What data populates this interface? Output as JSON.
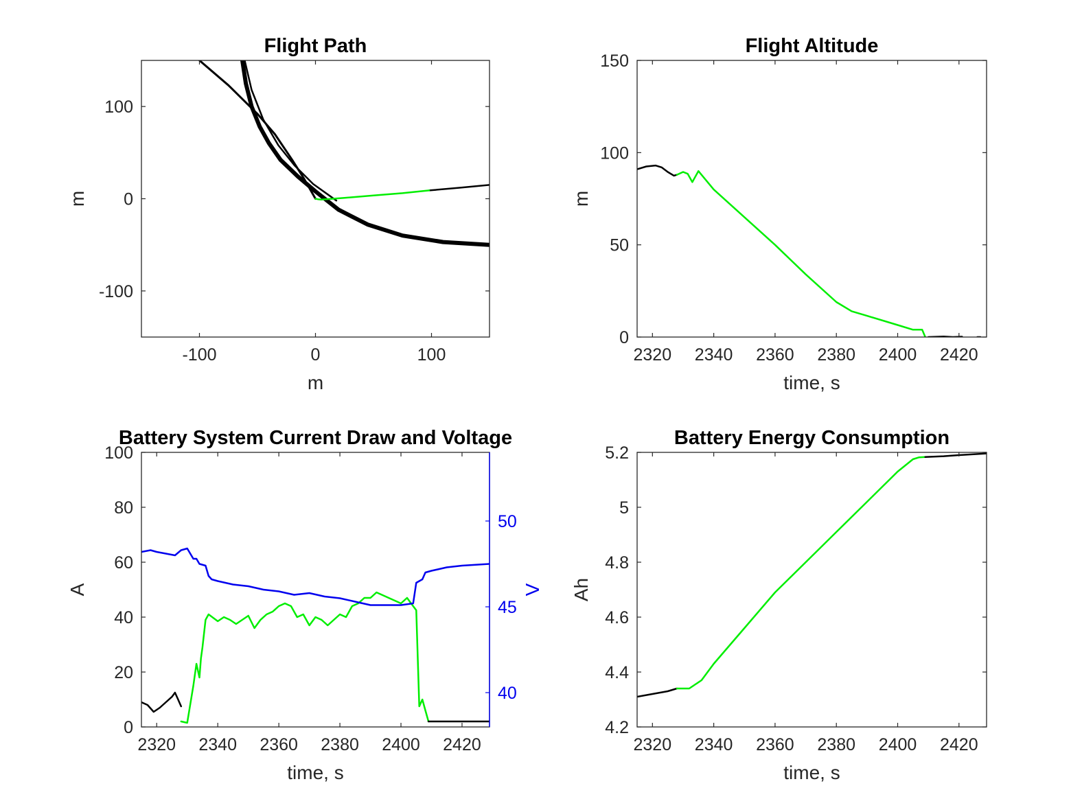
{
  "chart_data": [
    {
      "type": "line",
      "title": "Flight Path",
      "xlabel": "m",
      "ylabel": "m",
      "xlim": [
        -150,
        150
      ],
      "ylim": [
        -150,
        150
      ],
      "xticks": [
        -100,
        0,
        100
      ],
      "yticks": [
        -100,
        0,
        100
      ],
      "series": [
        {
          "color": "#000000",
          "width": 3,
          "x": [
            -100,
            -75,
            -50,
            -35,
            -20,
            -10,
            0
          ],
          "y": [
            150,
            123,
            92,
            70,
            42,
            22,
            0
          ]
        },
        {
          "color": "#000000",
          "width": 6,
          "x": [
            -63,
            -60,
            -55,
            -48,
            -40,
            -30,
            -15,
            0,
            20,
            45,
            75,
            110,
            150
          ],
          "y": [
            150,
            125,
            100,
            78,
            60,
            42,
            24,
            8,
            -12,
            -28,
            -40,
            -47,
            -50
          ]
        },
        {
          "color": "#000000",
          "width": 2.5,
          "x": [
            -61,
            -55,
            -45,
            -32,
            -18,
            -2,
            18
          ],
          "y": [
            150,
            118,
            86,
            58,
            36,
            16,
            -2
          ]
        },
        {
          "color": "#000000",
          "width": 2.5,
          "x": [
            98,
            125,
            150
          ],
          "y": [
            9,
            12,
            15
          ]
        },
        {
          "color": "#00ee00",
          "width": 2.5,
          "x": [
            0,
            2,
            5,
            15,
            25,
            50,
            75,
            98
          ],
          "y": [
            0,
            -0.5,
            -1,
            0,
            1,
            3.5,
            6,
            9
          ]
        }
      ]
    },
    {
      "type": "line",
      "title": "Flight Altitude",
      "xlabel": "time, s",
      "ylabel": "m",
      "xlim": [
        2315,
        2429
      ],
      "ylim": [
        0,
        150
      ],
      "xticks": [
        2320,
        2340,
        2360,
        2380,
        2400,
        2420
      ],
      "yticks": [
        0,
        50,
        100,
        150
      ],
      "series": [
        {
          "color": "#000000",
          "width": 2.5,
          "x": [
            2315,
            2318,
            2321,
            2323,
            2325,
            2327,
            2328
          ],
          "y": [
            91,
            92.5,
            93,
            92,
            89.5,
            87.5,
            88
          ]
        },
        {
          "color": "#00ee00",
          "width": 2.5,
          "x": [
            2328,
            2330,
            2331.5,
            2333,
            2334,
            2335,
            2340,
            2350,
            2360,
            2370,
            2380,
            2385,
            2390,
            2400,
            2405,
            2407,
            2408,
            2409
          ],
          "y": [
            88,
            89.5,
            88.5,
            84,
            87,
            90,
            80,
            65,
            50,
            34,
            19,
            14,
            11.5,
            6.5,
            4,
            4,
            4,
            0
          ]
        },
        {
          "color": "#000000",
          "width": 2.5,
          "x": [
            2410,
            2415,
            2418,
            2421
          ],
          "y": [
            0,
            0.3,
            0,
            0.2
          ]
        },
        {
          "color": "#000000",
          "width": 2.5,
          "x": [
            2426,
            2427
          ],
          "y": [
            0,
            0
          ]
        }
      ]
    },
    {
      "type": "line",
      "title": "Battery System Current Draw and Voltage",
      "xlabel": "time, s",
      "ylabel": "A",
      "ylabel_right": "V",
      "xlim": [
        2315,
        2429
      ],
      "ylim": [
        0,
        100
      ],
      "ylim_right": [
        38,
        54
      ],
      "xticks": [
        2320,
        2340,
        2360,
        2380,
        2400,
        2420
      ],
      "yticks": [
        0,
        20,
        40,
        60,
        80,
        100
      ],
      "yticks_right": [
        40,
        45,
        50
      ],
      "right_color": "#0000ee",
      "series": [
        {
          "axis": "left",
          "color": "#000000",
          "width": 2.5,
          "x": [
            2315,
            2317,
            2319,
            2321,
            2323,
            2325,
            2326,
            2327,
            2328
          ],
          "y": [
            9,
            8,
            5.5,
            7,
            9,
            11,
            12.5,
            10,
            7.5
          ]
        },
        {
          "axis": "left",
          "color": "#00ee00",
          "width": 2.5,
          "x": [
            2328,
            2330,
            2332,
            2333,
            2334,
            2334.5,
            2335,
            2336,
            2337,
            2340,
            2342,
            2344,
            2346,
            2348,
            2350,
            2352,
            2354,
            2356,
            2358,
            2360,
            2362,
            2364,
            2366,
            2368,
            2370,
            2372,
            2374,
            2376,
            2378,
            2380,
            2382,
            2384,
            2386,
            2388,
            2390,
            2392,
            2394,
            2396,
            2398,
            2400,
            2402,
            2404,
            2405,
            2406,
            2407,
            2408,
            2409
          ],
          "y": [
            2,
            1.5,
            15,
            23,
            18,
            25,
            29,
            39,
            41,
            38.5,
            40,
            39,
            37.5,
            39,
            40.5,
            36,
            39,
            41,
            42,
            44,
            45,
            44,
            40,
            41,
            37,
            40,
            39,
            37,
            39,
            41,
            40,
            44,
            45,
            47,
            47,
            49,
            48,
            47,
            46,
            45,
            47,
            44,
            42.5,
            7.5,
            10,
            6,
            2
          ]
        },
        {
          "axis": "left",
          "color": "#000000",
          "width": 2.5,
          "x": [
            2409,
            2415,
            2420,
            2429
          ],
          "y": [
            2,
            2,
            2,
            2
          ]
        },
        {
          "axis": "right",
          "color": "#0000ee",
          "width": 2.5,
          "x": [
            2315,
            2318,
            2320,
            2323,
            2326,
            2328,
            2330,
            2332,
            2333,
            2334,
            2336,
            2337,
            2338,
            2340,
            2345,
            2350,
            2355,
            2360,
            2365,
            2370,
            2375,
            2380,
            2385,
            2390,
            2395,
            2400,
            2404,
            2405,
            2406,
            2407,
            2408,
            2410,
            2415,
            2420,
            2429
          ],
          "y": [
            48.2,
            48.3,
            48.2,
            48.1,
            48,
            48.3,
            48.4,
            47.8,
            47.8,
            47.5,
            47.4,
            46.8,
            46.6,
            46.5,
            46.3,
            46.2,
            46,
            45.9,
            45.7,
            45.8,
            45.6,
            45.5,
            45.3,
            45.1,
            45.1,
            45.1,
            45.2,
            46.4,
            46.5,
            46.6,
            47.0,
            47.1,
            47.3,
            47.4,
            47.5
          ]
        }
      ]
    },
    {
      "type": "line",
      "title": "Battery Energy Consumption",
      "xlabel": "time, s",
      "ylabel": "Ah",
      "xlim": [
        2315,
        2429
      ],
      "ylim": [
        4.2,
        5.2
      ],
      "xticks": [
        2320,
        2340,
        2360,
        2380,
        2400,
        2420
      ],
      "yticks": [
        4.2,
        4.4,
        4.6,
        4.8,
        5,
        5.2
      ],
      "yticklabels": [
        "4.2",
        "4.4",
        "4.6",
        "4.8",
        "5",
        "5.2"
      ],
      "series": [
        {
          "color": "#000000",
          "width": 2.5,
          "x": [
            2315,
            2320,
            2325,
            2328
          ],
          "y": [
            4.31,
            4.32,
            4.33,
            4.34
          ]
        },
        {
          "color": "#00ee00",
          "width": 2.5,
          "x": [
            2328,
            2332,
            2334,
            2336,
            2340,
            2350,
            2360,
            2370,
            2380,
            2390,
            2400,
            2405,
            2407,
            2409
          ],
          "y": [
            4.34,
            4.34,
            4.355,
            4.37,
            4.43,
            4.56,
            4.69,
            4.8,
            4.91,
            5.02,
            5.13,
            5.175,
            5.182,
            5.183
          ]
        },
        {
          "color": "#000000",
          "width": 2.5,
          "x": [
            2409,
            2415,
            2420,
            2429
          ],
          "y": [
            5.183,
            5.186,
            5.19,
            5.196
          ]
        }
      ]
    }
  ]
}
